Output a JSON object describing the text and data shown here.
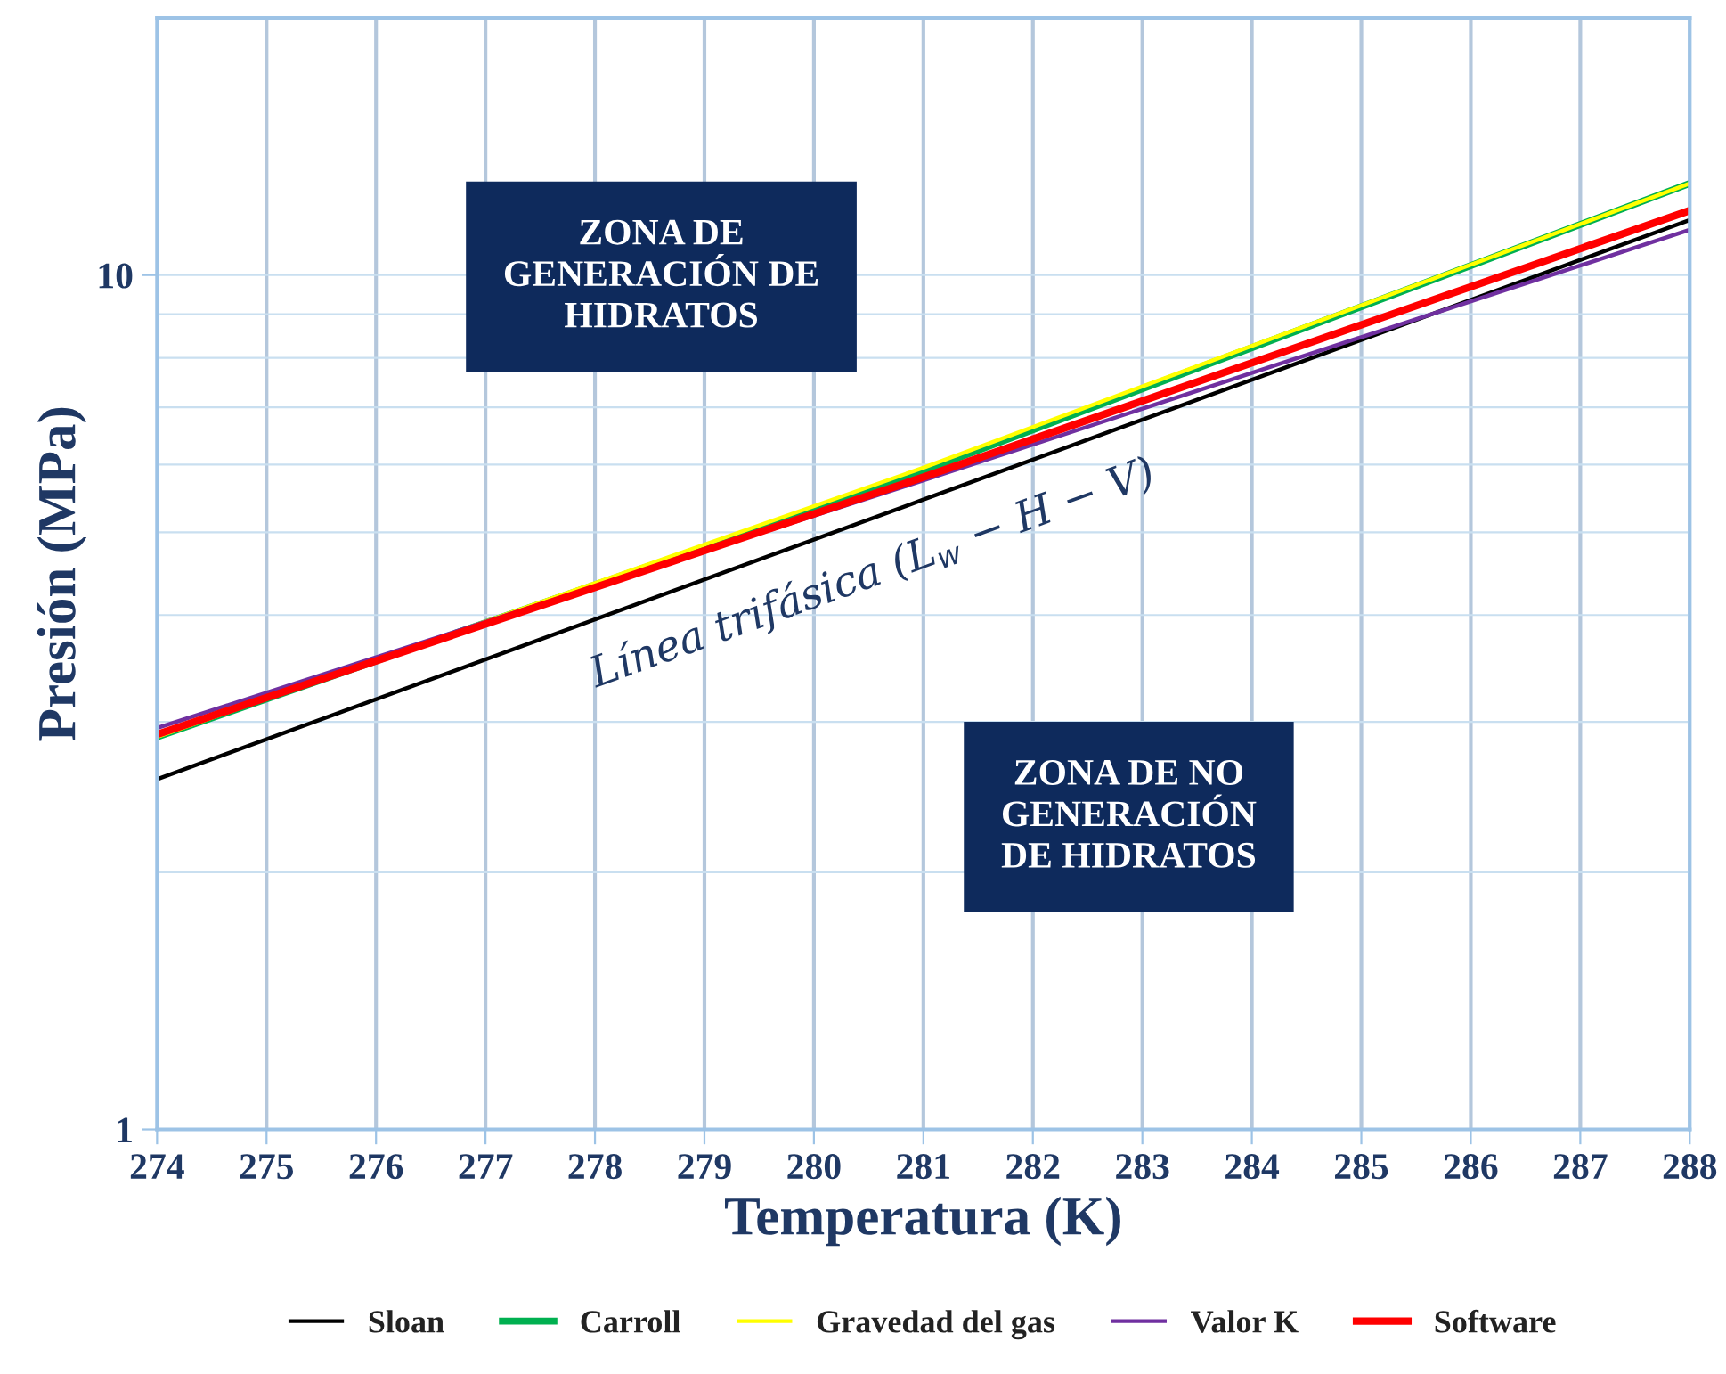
{
  "chart_data": {
    "type": "line",
    "xlabel": "Temperatura (K)",
    "ylabel": "Presión (MPa)",
    "log": "y",
    "x": [
      274,
      281,
      288
    ],
    "xlim": [
      274,
      288
    ],
    "xticks": [
      274,
      275,
      276,
      277,
      278,
      279,
      280,
      281,
      282,
      283,
      284,
      285,
      286,
      287,
      288
    ],
    "ylim": [
      1,
      20
    ],
    "yticks": [
      1,
      {
        "value": 2,
        "label": null
      },
      {
        "value": 3,
        "label": null
      },
      {
        "value": 4,
        "label": null
      },
      {
        "value": 5,
        "label": null
      },
      {
        "value": 6,
        "label": null
      },
      {
        "value": 7,
        "label": null
      },
      {
        "value": 8,
        "label": null
      },
      {
        "value": 9,
        "label": null
      },
      10
    ],
    "grid": true,
    "legend": "bottom",
    "marker": "none",
    "line_style": "solid",
    "series": [
      {
        "name": "Sloan",
        "color": "#000000",
        "values": [
          2.57,
          5.46,
          11.6
        ]
      },
      {
        "name": "Carroll",
        "color": "#00b050",
        "values": [
          2.88,
          5.9,
          12.8
        ]
      },
      {
        "name": "Gravedad del gas",
        "color": "#ffff00",
        "values": [
          2.88,
          5.95,
          12.8
        ]
      },
      {
        "name": "Valor K",
        "color": "#7030a0",
        "values": [
          2.95,
          5.75,
          11.3
        ]
      },
      {
        "name": "Software",
        "color": "#ff0000",
        "values": [
          2.9,
          5.8,
          11.9
        ]
      }
    ],
    "annotations": [
      "ZONA DE\nGENERACIÓN DE\nHIDRATOS",
      "ZONA DE NO\nGENERACIÓN\nDE HIDRATOS",
      "Línea trifásica (L$_{w}$ − H − V)"
    ]
  }
}
